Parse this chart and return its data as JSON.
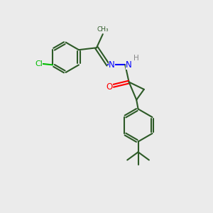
{
  "bg_color": "#ebebeb",
  "bond_color": "#2d5a27",
  "atom_colors": {
    "O": "#ff0000",
    "N": "#0000ff",
    "Cl": "#00bb00",
    "C": "#2d5a27",
    "H": "#888888"
  },
  "lw": 1.5,
  "ring_r": 0.72
}
